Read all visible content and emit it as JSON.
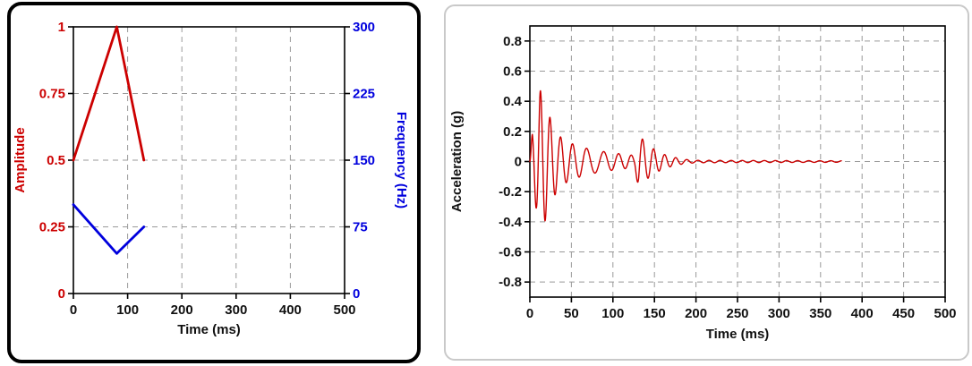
{
  "figure": {
    "background": "#ffffff",
    "panel_border_left": "#000000",
    "panel_border_right": "#c9c9c9"
  },
  "chart_data": [
    {
      "type": "line",
      "xlabel": "Time (ms)",
      "xlim": [
        0,
        500
      ],
      "xticks": [
        0,
        100,
        200,
        300,
        400,
        500
      ],
      "ylabel": "Amplitude",
      "ylabel_color": "#cc0000",
      "ylim": [
        0,
        1
      ],
      "yticks": [
        0,
        0.25,
        0.5,
        0.75,
        1
      ],
      "y2label": "Frequency (Hz)",
      "y2label_color": "#0000dd",
      "y2lim": [
        0,
        300
      ],
      "y2ticks": [
        0,
        75,
        150,
        225,
        300
      ],
      "grid": true,
      "legend": "none",
      "series": [
        {
          "name": "amplitude",
          "axis": "y",
          "color": "#cc0000",
          "points": [
            [
              0,
              0.5
            ],
            [
              80,
              1.0
            ],
            [
              130,
              0.5
            ]
          ]
        },
        {
          "name": "frequency",
          "axis": "y2",
          "color": "#0000dd",
          "points": [
            [
              0,
              100
            ],
            [
              80,
              45
            ],
            [
              130,
              75
            ]
          ]
        }
      ]
    },
    {
      "type": "line",
      "xlabel": "Time (ms)",
      "xlim": [
        0,
        500
      ],
      "xticks": [
        0,
        50,
        100,
        150,
        200,
        250,
        300,
        350,
        400,
        450,
        500
      ],
      "ylabel": "Acceleration (g)",
      "ylabel_color": "#111111",
      "ylim": [
        -0.9,
        0.9
      ],
      "yticks": [
        0.8,
        0.6,
        0.4,
        0.2,
        0,
        -0.2,
        -0.4,
        -0.6,
        -0.8
      ],
      "grid": true,
      "legend": "none",
      "series": [
        {
          "name": "acceleration",
          "axis": "y",
          "color": "#cc0000",
          "waveform": {
            "t_start": 0,
            "t_end": 375,
            "dt_ms": 0.25,
            "peak_g": 0.46,
            "trough_g": -0.35,
            "envelope_g": [
              [
                0,
                0
              ],
              [
                3,
                0.2
              ],
              [
                8,
                0.32
              ],
              [
                12,
                0.48
              ],
              [
                18,
                0.4
              ],
              [
                25,
                0.28
              ],
              [
                35,
                0.17
              ],
              [
                50,
                0.12
              ],
              [
                70,
                0.085
              ],
              [
                90,
                0.065
              ],
              [
                110,
                0.05
              ],
              [
                126,
                0.04
              ],
              [
                131,
                0.18
              ],
              [
                140,
                0.12
              ],
              [
                150,
                0.08
              ],
              [
                160,
                0.05
              ],
              [
                172,
                0.03
              ],
              [
                185,
                0.015
              ],
              [
                200,
                0.008
              ],
              [
                375,
                0.005
              ]
            ],
            "frequency_hz": [
              [
                0,
                100
              ],
              [
                80,
                45
              ],
              [
                130,
                75
              ],
              [
                375,
                75
              ]
            ]
          }
        }
      ]
    }
  ]
}
